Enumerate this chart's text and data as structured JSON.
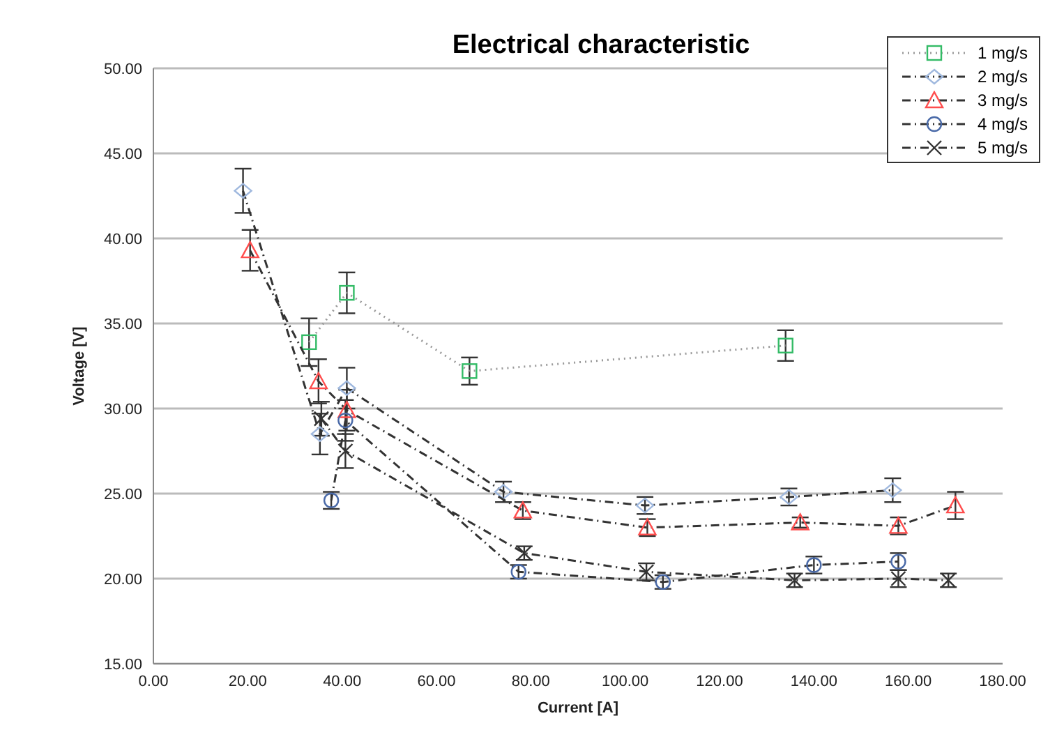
{
  "chart_data": {
    "type": "line",
    "title": "Electrical characteristic",
    "xlabel": "Current [A]",
    "ylabel": "Voltage [V]",
    "xlim": [
      0,
      180
    ],
    "ylim": [
      15,
      50
    ],
    "xticks": [
      {
        "value": 0,
        "label": "0.00"
      },
      {
        "value": 20,
        "label": "20.00"
      },
      {
        "value": 40,
        "label": "40.00"
      },
      {
        "value": 60,
        "label": "60.00"
      },
      {
        "value": 80,
        "label": "80.00"
      },
      {
        "value": 100,
        "label": "100.00"
      },
      {
        "value": 120,
        "label": "120.00"
      },
      {
        "value": 140,
        "label": "140.00"
      },
      {
        "value": 160,
        "label": "160.00"
      },
      {
        "value": 180,
        "label": "180.00"
      }
    ],
    "yticks": [
      {
        "value": 15,
        "label": "15.00"
      },
      {
        "value": 20,
        "label": "20.00"
      },
      {
        "value": 25,
        "label": "25.00"
      },
      {
        "value": 30,
        "label": "30.00"
      },
      {
        "value": 35,
        "label": "35.00"
      },
      {
        "value": 40,
        "label": "40.00"
      },
      {
        "value": 45,
        "label": "45.00"
      },
      {
        "value": 50,
        "label": "50.00"
      }
    ],
    "grid": "y",
    "legend": "top right",
    "series": [
      {
        "name": "1 mg/s",
        "color": "#33bb66",
        "marker": "square",
        "line_style": "dotted",
        "x": [
          33,
          41,
          67,
          134
        ],
        "values": [
          33.9,
          36.8,
          32.2,
          33.7
        ],
        "errors": [
          1.4,
          1.2,
          0.8,
          0.9
        ]
      },
      {
        "name": "2 mg/s",
        "color": "#9fb8de",
        "marker": "diamond",
        "line_style": "dashed",
        "x": [
          19,
          35.3,
          41,
          74.2,
          104.2,
          134.7,
          156.7
        ],
        "values": [
          42.8,
          28.5,
          31.2,
          25.1,
          24.3,
          24.8,
          25.2
        ],
        "errors": [
          1.3,
          1.2,
          1.2,
          0.6,
          0.5,
          0.5,
          0.7
        ]
      },
      {
        "name": "3 mg/s",
        "color": "#ff4d4d",
        "marker": "triangle",
        "line_style": "dashed",
        "x": [
          20.5,
          35,
          41,
          78.3,
          104.7,
          137.1,
          157.9,
          170
        ],
        "values": [
          39.3,
          31.6,
          29.9,
          24,
          23,
          23.3,
          23.1,
          24.3
        ],
        "errors": [
          1.2,
          1.3,
          1.2,
          0.5,
          0.5,
          0.3,
          0.5,
          0.8
        ]
      },
      {
        "name": "4 mg/s",
        "color": "#4a6aa8",
        "marker": "circle",
        "line_style": "dashed",
        "x": [
          37.7,
          40.7,
          77.4,
          108,
          140,
          157.9
        ],
        "values": [
          24.6,
          29.3,
          20.4,
          19.8,
          20.8,
          21
        ],
        "errors": [
          0.5,
          1.2,
          0.4,
          0.4,
          0.5,
          0.5
        ]
      },
      {
        "name": "5 mg/s",
        "color": "#333333",
        "marker": "cross",
        "line_style": "dashed",
        "x": [
          35.6,
          40.7,
          78.6,
          104.5,
          135.9,
          157.9,
          168.5
        ],
        "values": [
          29.4,
          27.5,
          21.5,
          20.4,
          19.9,
          20,
          19.9
        ],
        "errors": [
          1,
          1,
          0.4,
          0.5,
          0.4,
          0.5,
          0.4
        ]
      }
    ]
  }
}
